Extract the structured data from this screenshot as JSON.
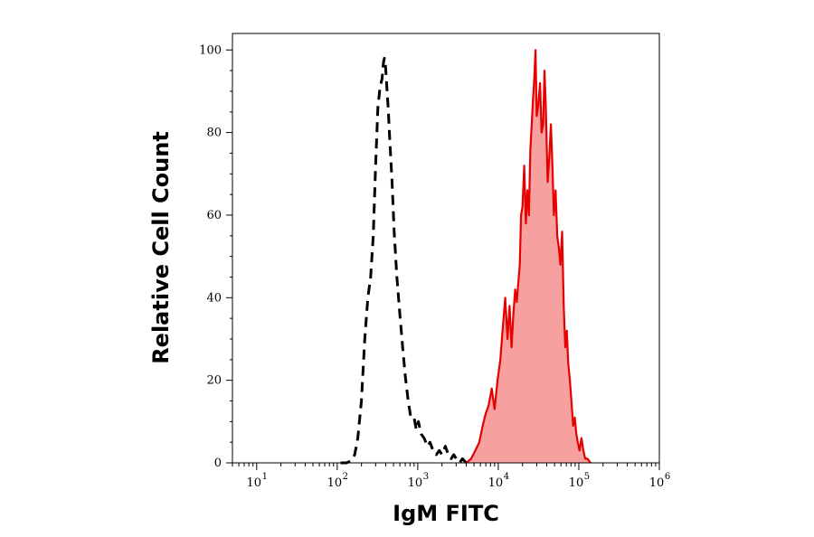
{
  "chart_data": {
    "type": "area",
    "xlabel": "IgM FITC",
    "ylabel": "Relative Cell Count",
    "x_scale": "log",
    "xlim": [
      5,
      1000000
    ],
    "ylim": [
      0,
      104
    ],
    "x_ticks": [
      {
        "base": "10",
        "exp": "1",
        "value": 10
      },
      {
        "base": "10",
        "exp": "2",
        "value": 100
      },
      {
        "base": "10",
        "exp": "3",
        "value": 1000
      },
      {
        "base": "10",
        "exp": "4",
        "value": 10000
      },
      {
        "base": "10",
        "exp": "5",
        "value": 100000
      },
      {
        "base": "10",
        "exp": "6",
        "value": 1000000
      }
    ],
    "y_ticks": [
      {
        "label": "0",
        "value": 0
      },
      {
        "label": "20",
        "value": 20
      },
      {
        "label": "40",
        "value": 40
      },
      {
        "label": "60",
        "value": 60
      },
      {
        "label": "80",
        "value": 80
      },
      {
        "label": "100",
        "value": 100
      }
    ],
    "series": [
      {
        "style": "dashed",
        "color": "#000000",
        "filled": false,
        "points": [
          [
            110,
            0
          ],
          [
            130,
            0
          ],
          [
            150,
            0.5
          ],
          [
            165,
            2
          ],
          [
            180,
            6
          ],
          [
            200,
            15
          ],
          [
            220,
            30
          ],
          [
            240,
            40
          ],
          [
            260,
            45
          ],
          [
            280,
            55
          ],
          [
            300,
            72
          ],
          [
            320,
            86
          ],
          [
            340,
            91
          ],
          [
            360,
            93
          ],
          [
            375,
            97
          ],
          [
            385,
            98
          ],
          [
            395,
            97
          ],
          [
            410,
            92
          ],
          [
            430,
            86
          ],
          [
            450,
            78
          ],
          [
            480,
            68
          ],
          [
            510,
            56
          ],
          [
            550,
            45
          ],
          [
            600,
            36
          ],
          [
            650,
            28
          ],
          [
            700,
            21
          ],
          [
            760,
            15
          ],
          [
            820,
            11
          ],
          [
            900,
            11
          ],
          [
            960,
            8
          ],
          [
            1020,
            10
          ],
          [
            1100,
            7
          ],
          [
            1200,
            6
          ],
          [
            1320,
            4
          ],
          [
            1420,
            5
          ],
          [
            1550,
            3
          ],
          [
            1700,
            2
          ],
          [
            1850,
            3
          ],
          [
            2000,
            2
          ],
          [
            2200,
            4
          ],
          [
            2400,
            2
          ],
          [
            2600,
            1
          ],
          [
            2800,
            2
          ],
          [
            3000,
            1
          ],
          [
            3300,
            0
          ],
          [
            3600,
            1
          ],
          [
            4000,
            0
          ],
          [
            4500,
            0
          ]
        ]
      },
      {
        "style": "solid",
        "color": "#e60000",
        "fill": "#f7a0a0",
        "filled": true,
        "points": [
          [
            4000,
            0
          ],
          [
            4600,
            1
          ],
          [
            5200,
            3
          ],
          [
            5800,
            5
          ],
          [
            6400,
            9
          ],
          [
            7000,
            12
          ],
          [
            7600,
            14
          ],
          [
            8300,
            18
          ],
          [
            9000,
            13
          ],
          [
            9800,
            20
          ],
          [
            10600,
            25
          ],
          [
            11400,
            33
          ],
          [
            12200,
            40
          ],
          [
            13000,
            30
          ],
          [
            13800,
            38
          ],
          [
            14600,
            28
          ],
          [
            15400,
            36
          ],
          [
            16200,
            42
          ],
          [
            17000,
            39
          ],
          [
            17800,
            44
          ],
          [
            18500,
            48
          ],
          [
            19200,
            60
          ],
          [
            20000,
            62
          ],
          [
            21000,
            72
          ],
          [
            22000,
            58
          ],
          [
            23000,
            66
          ],
          [
            24000,
            60
          ],
          [
            25000,
            76
          ],
          [
            26000,
            82
          ],
          [
            27000,
            88
          ],
          [
            28000,
            93
          ],
          [
            29000,
            100
          ],
          [
            30000,
            84
          ],
          [
            31500,
            87
          ],
          [
            33000,
            92
          ],
          [
            34500,
            80
          ],
          [
            36000,
            82
          ],
          [
            37500,
            95
          ],
          [
            39000,
            86
          ],
          [
            41000,
            68
          ],
          [
            43000,
            74
          ],
          [
            45000,
            82
          ],
          [
            47000,
            72
          ],
          [
            49000,
            60
          ],
          [
            51500,
            66
          ],
          [
            54000,
            55
          ],
          [
            56500,
            52
          ],
          [
            59000,
            48
          ],
          [
            62000,
            56
          ],
          [
            65000,
            38
          ],
          [
            68000,
            28
          ],
          [
            71000,
            32
          ],
          [
            74000,
            24
          ],
          [
            77500,
            20
          ],
          [
            81000,
            15
          ],
          [
            85000,
            9
          ],
          [
            89000,
            11
          ],
          [
            93000,
            7
          ],
          [
            97000,
            5
          ],
          [
            102000,
            3
          ],
          [
            108000,
            6
          ],
          [
            114000,
            3
          ],
          [
            120000,
            1
          ],
          [
            128000,
            1
          ],
          [
            140000,
            0
          ]
        ]
      }
    ]
  }
}
